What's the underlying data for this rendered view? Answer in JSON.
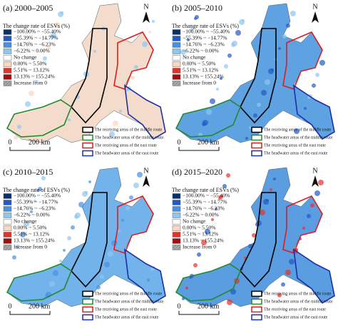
{
  "panels": [
    {
      "title": "(a) 2000–2005"
    },
    {
      "title": "(b) 2005–2010"
    },
    {
      "title": "(c) 2010–2015"
    },
    {
      "title": "(d) 2015–2020"
    }
  ],
  "legend": {
    "title": "The change rate of ESVs (%)",
    "items": [
      {
        "label": "−100.00% ~ −55.40%",
        "color": "#08306b"
      },
      {
        "label": "−55.39% ~ −14.77%",
        "color": "#2458c4"
      },
      {
        "label": "−14.76% ~ −6.23%",
        "color": "#4a90e2"
      },
      {
        "label": "−6.22% ~ 0.00%",
        "color": "#8ec6f0"
      },
      {
        "label": "No change",
        "color": "#ffffff"
      },
      {
        "label": "0.00% ~ 5.50%",
        "color": "#fbd8c2"
      },
      {
        "label": "5.51% ~ 13.12%",
        "color": "#e8302a"
      },
      {
        "label": "13.13% ~ 155.24%",
        "color": "#9e0f12"
      },
      {
        "label": "Increase from 0",
        "color": "#aaaaaa"
      }
    ]
  },
  "scale": {
    "zero": "0",
    "distance": "200 km"
  },
  "north": "N",
  "routes": [
    {
      "label": "The receiving areas of the middle route",
      "color": "#000000"
    },
    {
      "label": "The headwater areas of the middle route",
      "color": "#1f8a2e"
    },
    {
      "label": "The receiving areas of the east route",
      "color": "#e01b1b"
    },
    {
      "label": "The headwater areas of the east route",
      "color": "#1b2fa8"
    }
  ]
}
